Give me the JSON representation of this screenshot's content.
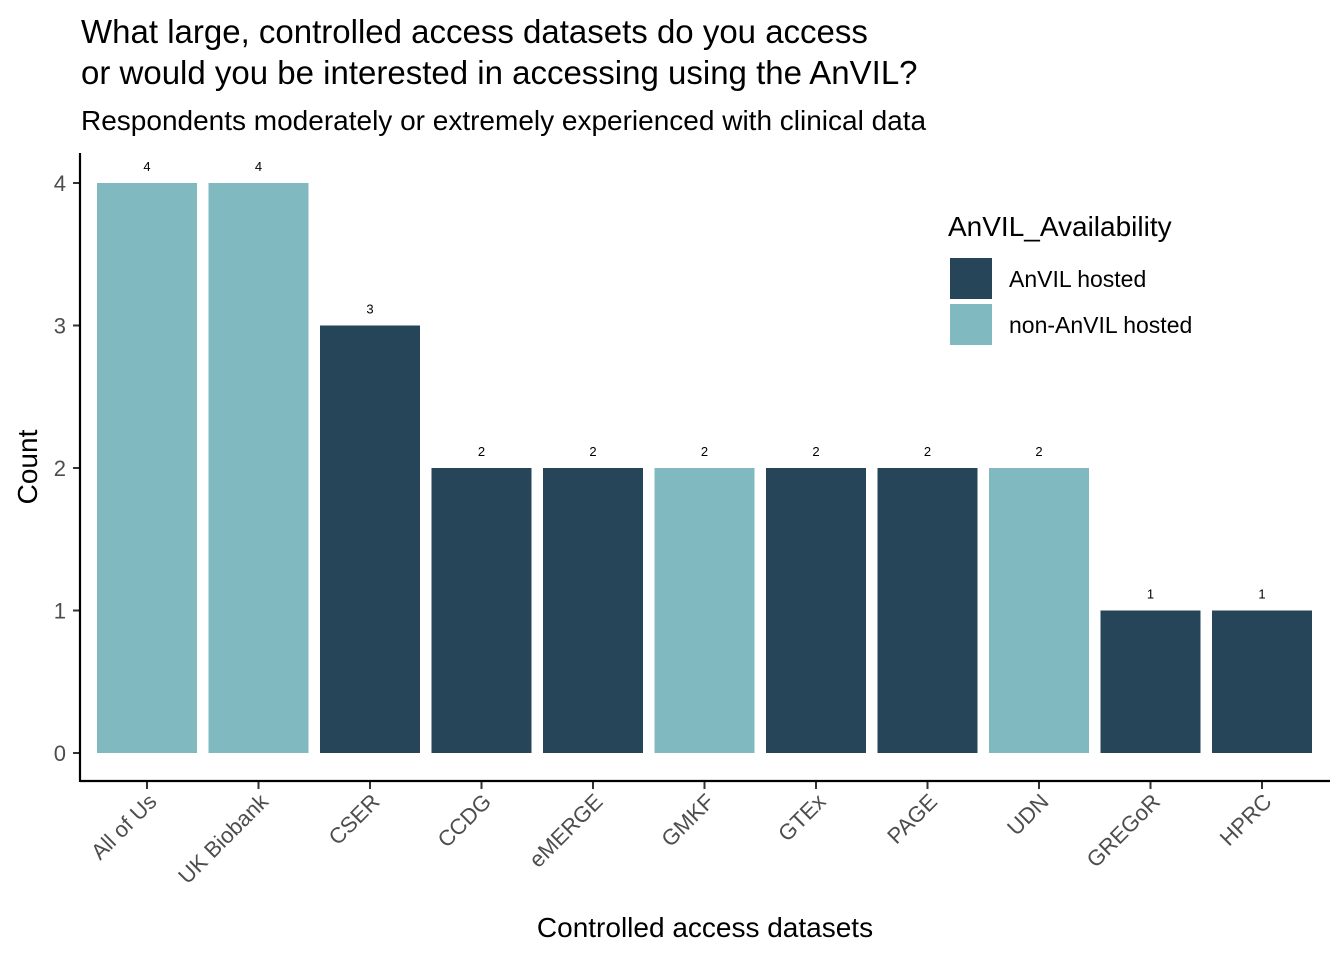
{
  "chart_data": {
    "type": "bar",
    "title_lines": [
      "What large, controlled access datasets do you access",
      "or would you be interested in accessing using the AnVIL?"
    ],
    "subtitle": "Respondents moderately or extremely experienced with clinical data",
    "xlabel": "Controlled access datasets",
    "ylabel": "Count",
    "ylim": [
      0,
      4
    ],
    "yticks": [
      0,
      1,
      2,
      3,
      4
    ],
    "grid": false,
    "categories": [
      "All of Us",
      "UK Biobank",
      "CSER",
      "CCDG",
      "eMERGE",
      "GMKF",
      "GTEx",
      "PAGE",
      "UDN",
      "GREGoR",
      "HPRC"
    ],
    "values": [
      4,
      4,
      3,
      2,
      2,
      2,
      2,
      2,
      2,
      1,
      1
    ],
    "groups": [
      "non-AnVIL hosted",
      "non-AnVIL hosted",
      "AnVIL hosted",
      "AnVIL hosted",
      "AnVIL hosted",
      "non-AnVIL hosted",
      "AnVIL hosted",
      "AnVIL hosted",
      "non-AnVIL hosted",
      "AnVIL hosted",
      "AnVIL hosted"
    ],
    "legend": {
      "title": "AnVIL_Availability",
      "placement": "top-right",
      "entries": [
        {
          "label": "AnVIL hosted",
          "color": "#264559"
        },
        {
          "label": "non-AnVIL hosted",
          "color": "#81b9c0"
        }
      ]
    }
  }
}
